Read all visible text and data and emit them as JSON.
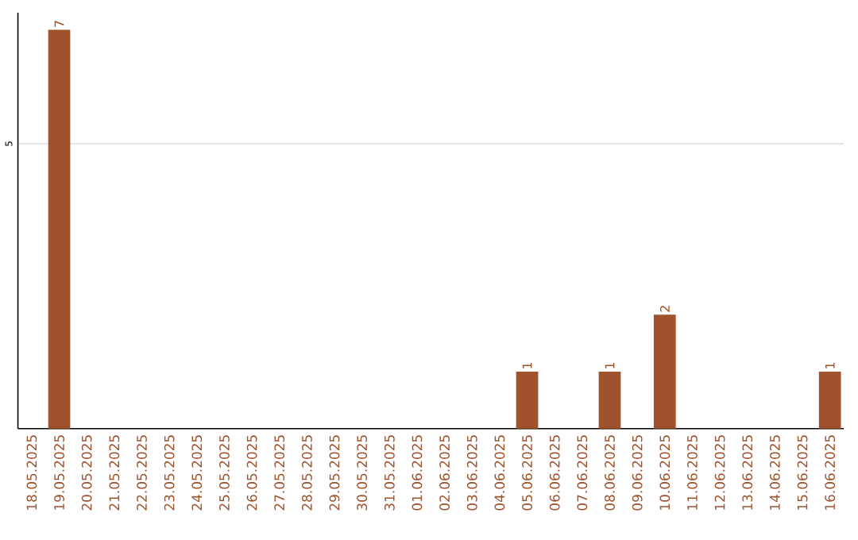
{
  "chart_data": {
    "type": "bar",
    "categories": [
      "18.05.2025",
      "19.05.2025",
      "20.05.2025",
      "21.05.2025",
      "22.05.2025",
      "23.05.2025",
      "24.05.2025",
      "25.05.2025",
      "26.05.2025",
      "27.05.2025",
      "28.05.2025",
      "29.05.2025",
      "30.05.2025",
      "31.05.2025",
      "01.06.2025",
      "02.06.2025",
      "03.06.2025",
      "04.06.2025",
      "05.06.2025",
      "06.06.2025",
      "07.06.2025",
      "08.06.2025",
      "09.06.2025",
      "10.06.2025",
      "11.06.2025",
      "12.06.2025",
      "13.06.2025",
      "14.06.2025",
      "15.06.2025",
      "16.06.2025"
    ],
    "values": [
      0,
      7,
      0,
      0,
      0,
      0,
      0,
      0,
      0,
      0,
      0,
      0,
      0,
      0,
      0,
      0,
      0,
      0,
      1,
      0,
      0,
      1,
      0,
      2,
      0,
      0,
      0,
      0,
      0,
      1
    ],
    "value_labels": [
      null,
      "7",
      null,
      null,
      null,
      null,
      null,
      null,
      null,
      null,
      null,
      null,
      null,
      null,
      null,
      null,
      null,
      null,
      "1",
      null,
      null,
      "1",
      null,
      "2",
      null,
      null,
      null,
      null,
      null,
      "1"
    ],
    "color": "#a0522d",
    "ylim": [
      0,
      7.3
    ],
    "yticks": [
      5
    ],
    "grid": "y"
  }
}
